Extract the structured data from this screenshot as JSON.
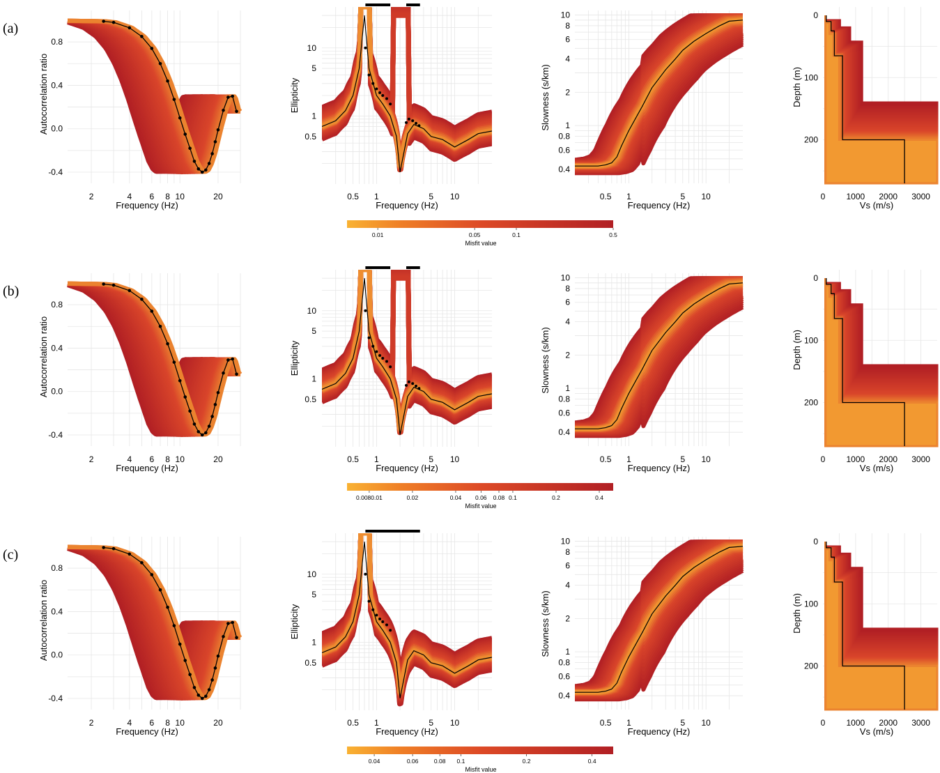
{
  "rows": [
    {
      "label": "(a)",
      "colorbar": {
        "ticks": [
          "0.01",
          "0.05",
          "0.1",
          "0.5"
        ],
        "label": "Misfit value"
      }
    },
    {
      "label": "(b)",
      "colorbar": {
        "ticks": [
          "0.0080.01",
          "0.02",
          "0.04",
          "0.06",
          "0.08",
          "0.1",
          "0.2",
          "0.4"
        ],
        "label": "Misfit value"
      }
    },
    {
      "label": "(c)",
      "colorbar": {
        "ticks": [
          "0.04",
          "0.06",
          "0.08",
          "0.1",
          "0.2",
          "0.4"
        ],
        "label": "Misfit value"
      }
    }
  ],
  "colors": {
    "best": "#f9b233",
    "worst": "#b11f24",
    "mid": "#d9452a",
    "curve": "#000000",
    "grid": "#e6e6e6"
  },
  "chart_data": [
    {
      "panel": "autocorrelation",
      "type": "line",
      "xlabel": "Frequency (Hz)",
      "ylabel": "Autocorrelation ratio",
      "xscale": "log",
      "xlim": [
        1.3,
        30
      ],
      "ylim": [
        -0.4,
        1.0
      ],
      "xticks": [
        "2",
        "4",
        "6",
        "8",
        "10",
        "20"
      ],
      "yticks": [
        "0.8",
        "0.4",
        "0.0",
        "-0.4"
      ],
      "series": [
        {
          "x": [
            2.5,
            3.0,
            4.0,
            5.0,
            6.0,
            7.0,
            8.0,
            9.0,
            10.0,
            11.0,
            12.0,
            13.0,
            14.0,
            15.0,
            16.0,
            17.0,
            18.0,
            19.0,
            20.0,
            22.0,
            24.0,
            26.0,
            28.0
          ],
          "y": [
            0.99,
            0.98,
            0.93,
            0.85,
            0.74,
            0.6,
            0.44,
            0.27,
            0.1,
            -0.05,
            -0.18,
            -0.3,
            -0.37,
            -0.4,
            -0.38,
            -0.32,
            -0.23,
            -0.12,
            -0.01,
            0.17,
            0.29,
            0.3,
            0.16
          ]
        }
      ]
    },
    {
      "panel": "ellipticity",
      "type": "line",
      "xlabel": "Frequency (Hz)",
      "ylabel": "Ellipticity",
      "xscale": "log",
      "yscale": "log",
      "xlim": [
        0.2,
        30
      ],
      "ylim": [
        0.1,
        40
      ],
      "xticks": [
        "0.5",
        "1",
        "5",
        "10"
      ],
      "yticks": [
        "10",
        "5",
        "1",
        "0.5"
      ],
      "series": [
        {
          "x": [
            0.2,
            0.3,
            0.4,
            0.5,
            0.6,
            0.7,
            0.8,
            1.0,
            1.2,
            1.5,
            1.8,
            2.0,
            2.5,
            3.0,
            4.0,
            5.0,
            7.0,
            10.0,
            15.0,
            20.0,
            30.0
          ],
          "y": [
            0.7,
            0.85,
            1.2,
            2.0,
            5.0,
            30.0,
            5.0,
            2.0,
            1.5,
            1.0,
            0.5,
            0.15,
            0.55,
            0.75,
            0.65,
            0.5,
            0.45,
            0.35,
            0.45,
            0.55,
            0.6
          ]
        }
      ]
    },
    {
      "panel": "dispersion",
      "type": "line",
      "xlabel": "Frequency (Hz)",
      "ylabel": "Slowness (s/km)",
      "xscale": "log",
      "yscale": "log",
      "xlim": [
        0.2,
        30
      ],
      "ylim": [
        0.3,
        11
      ],
      "xticks": [
        "0.5",
        "1",
        "5",
        "10"
      ],
      "yticks": [
        "10",
        "8",
        "6",
        "4",
        "2",
        "1",
        "0.8",
        "0.6",
        "0.4"
      ],
      "series": [
        {
          "x": [
            0.2,
            0.3,
            0.4,
            0.5,
            0.6,
            0.7,
            0.8,
            1.0,
            1.5,
            2.0,
            3.0,
            4.0,
            5.0,
            7.0,
            10.0,
            15.0,
            20.0,
            30.0
          ],
          "y": [
            0.43,
            0.43,
            0.43,
            0.44,
            0.46,
            0.52,
            0.65,
            0.9,
            1.5,
            2.2,
            3.2,
            4.0,
            4.8,
            5.8,
            6.8,
            8.0,
            8.8,
            9.0
          ]
        }
      ]
    },
    {
      "panel": "profile",
      "type": "line",
      "xlabel": "Vs (m/s)",
      "ylabel": "Depth (m)",
      "xlim": [
        0,
        3500
      ],
      "ylim": [
        0,
        270
      ],
      "xticks": [
        "0",
        "1000",
        "2000",
        "3000"
      ],
      "yticks": [
        "0",
        "100",
        "200"
      ],
      "series": [
        {
          "x": [
            100,
            100,
            250,
            250,
            350,
            350,
            600,
            600,
            2500,
            2500
          ],
          "y": [
            0,
            10,
            10,
            25,
            25,
            65,
            65,
            200,
            200,
            270
          ]
        }
      ]
    }
  ]
}
